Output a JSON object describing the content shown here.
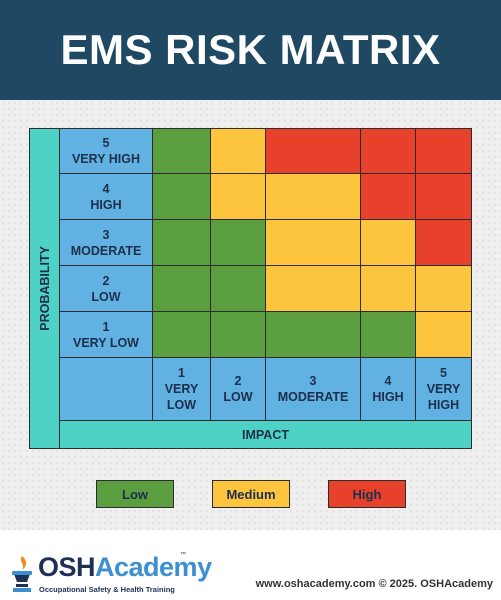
{
  "header": {
    "title": "EMS RISK MATRIX"
  },
  "matrix": {
    "y_axis": "PROBABILITY",
    "x_axis": "IMPACT",
    "rows": [
      {
        "number": "5",
        "label": "VERY HIGH",
        "colors": [
          "#5a9e3f",
          "#fdc43d",
          "#e8412b",
          "#e8412b",
          "#e8412b"
        ]
      },
      {
        "number": "4",
        "label": "HIGH",
        "colors": [
          "#5a9e3f",
          "#fdc43d",
          "#fdc43d",
          "#e8412b",
          "#e8412b"
        ]
      },
      {
        "number": "3",
        "label": "MODERATE",
        "colors": [
          "#5a9e3f",
          "#5a9e3f",
          "#fdc43d",
          "#fdc43d",
          "#e8412b"
        ]
      },
      {
        "number": "2",
        "label": "LOW",
        "colors": [
          "#5a9e3f",
          "#5a9e3f",
          "#fdc43d",
          "#fdc43d",
          "#fdc43d"
        ]
      },
      {
        "number": "1",
        "label": "VERY LOW",
        "colors": [
          "#5a9e3f",
          "#5a9e3f",
          "#5a9e3f",
          "#5a9e3f",
          "#fdc43d"
        ]
      }
    ],
    "columns": [
      {
        "number": "1",
        "label": "VERY LOW"
      },
      {
        "number": "2",
        "label": "LOW"
      },
      {
        "number": "3",
        "label": "MODERATE"
      },
      {
        "number": "4",
        "label": "HIGH"
      },
      {
        "number": "5",
        "label": "VERY HIGH"
      }
    ]
  },
  "legend": [
    {
      "label": "Low",
      "color": "#5a9e3f"
    },
    {
      "label": "Medium",
      "color": "#fdc43d"
    },
    {
      "label": "High",
      "color": "#e8412b"
    }
  ],
  "footer": {
    "logo": {
      "part1": "OSH",
      "part2": "Academy",
      "tm": "™",
      "tagline": "Occupational Safety & Health Training"
    },
    "credit": "www.oshacademy.com © 2025. OSHAcademy"
  }
}
